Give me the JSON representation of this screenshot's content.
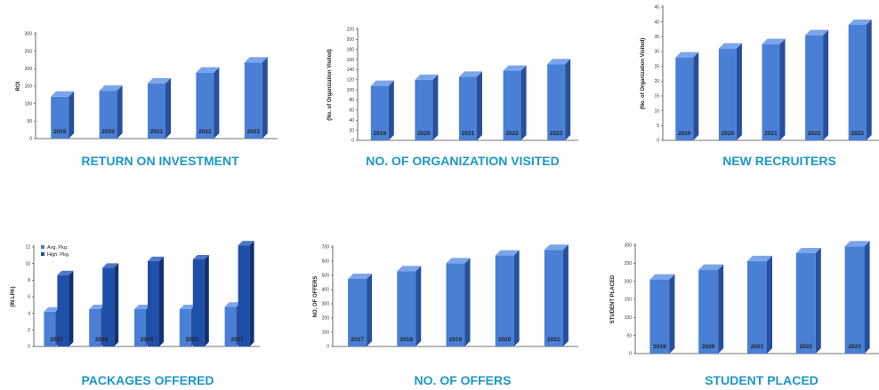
{
  "colors": {
    "bar_light_front": "#4a7fd6",
    "bar_light_side": "#27509c",
    "bar_light_top": "#7ba5ea",
    "bar_dark_front": "#1f4fa8",
    "bar_dark_side": "#123274",
    "bar_dark_top": "#4c78c8",
    "title": "#1d97c7",
    "axis": "#444444"
  },
  "chart_data": [
    {
      "type": "bar",
      "title": "RETURN ON INVESTMENT",
      "ylabel": "ROI",
      "categories": [
        "2019",
        "2020",
        "2021",
        "2022",
        "2023"
      ],
      "values": [
        120,
        137,
        158,
        189,
        218
      ],
      "ylim": [
        0,
        300
      ],
      "yticks": [
        0,
        50,
        100,
        150,
        200,
        250,
        300
      ]
    },
    {
      "type": "bar",
      "title": "NO. OF ORGANIZATION VISITED",
      "ylabel": "(No. of Organization Visited)",
      "categories": [
        "2019",
        "2020",
        "2021",
        "2022",
        "2023"
      ],
      "values": [
        108,
        120,
        126,
        138,
        151
      ],
      "ylim": [
        0,
        220
      ],
      "yticks": [
        0,
        20,
        40,
        60,
        80,
        100,
        120,
        140,
        160,
        180,
        200,
        220
      ]
    },
    {
      "type": "bar",
      "title": "NEW RECRUITERS",
      "ylabel": "(No. of Organization Visited)",
      "categories": [
        "2019",
        "2020",
        "2021",
        "2022",
        "2023"
      ],
      "values": [
        28,
        31,
        32.5,
        35.5,
        39
      ],
      "ylim": [
        0,
        45
      ],
      "yticks": [
        0,
        5,
        10,
        15,
        20,
        25,
        30,
        35,
        40,
        45
      ]
    },
    {
      "type": "bar",
      "title": "PACKAGES OFFERED",
      "ylabel": "(IN LPA)",
      "categories": [
        "2017",
        "2018",
        "2019",
        "2020",
        "2021"
      ],
      "series": [
        {
          "name": "Avg. Pkg.",
          "values": [
            4.2,
            4.5,
            4.5,
            4.5,
            4.8
          ]
        },
        {
          "name": "High. Pkg.",
          "values": [
            8.6,
            9.5,
            10.3,
            10.5,
            12.2
          ]
        }
      ],
      "ylim": [
        0,
        12
      ],
      "yticks": [
        0,
        2,
        4,
        6,
        8,
        10,
        12
      ],
      "legend": "top-left"
    },
    {
      "type": "bar",
      "title": "NO. OF OFFERS",
      "ylabel": "NO. OF OFFERS",
      "categories": [
        "2017",
        "2018",
        "2019",
        "2020",
        "2021"
      ],
      "values": [
        475,
        530,
        585,
        640,
        680
      ],
      "ylim": [
        0,
        700
      ],
      "yticks": [
        0,
        100,
        200,
        300,
        400,
        500,
        600,
        700
      ]
    },
    {
      "type": "bar",
      "title": "STUDENT PLACED",
      "ylabel": "STUDENT PLACED",
      "categories": [
        "2019",
        "2020",
        "2021",
        "2022",
        "2023"
      ],
      "values": [
        205,
        232,
        256,
        278,
        297
      ],
      "ylim": [
        0,
        300
      ],
      "yticks": [
        0,
        50,
        100,
        150,
        200,
        250,
        300
      ]
    }
  ]
}
